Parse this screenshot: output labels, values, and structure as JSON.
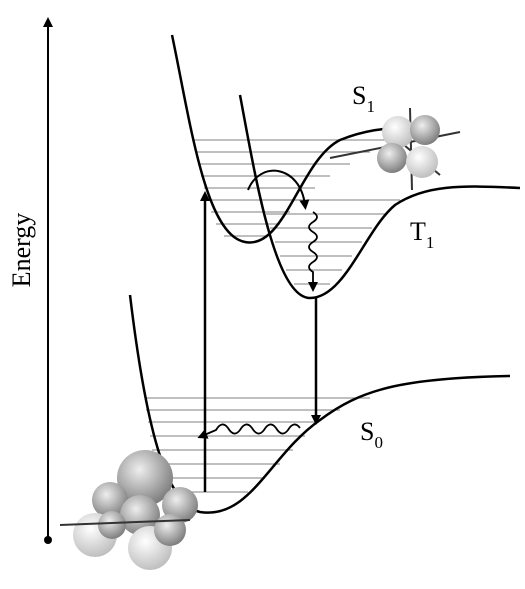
{
  "axis_label": "Energy",
  "states": [
    {
      "letter": "S",
      "index": "1"
    },
    {
      "letter": "T",
      "index": "1"
    },
    {
      "letter": "S",
      "index": "0"
    }
  ]
}
